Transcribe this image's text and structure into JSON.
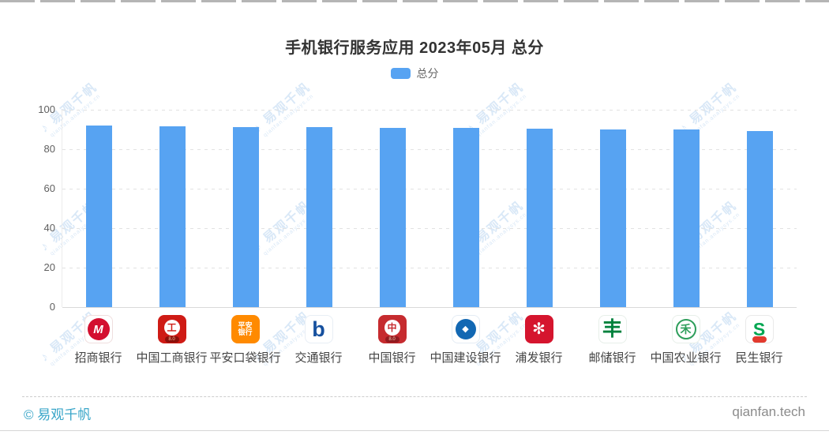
{
  "page": {
    "footer_left": "© 易观千帆",
    "footer_right": "qianfan.tech"
  },
  "legend": {
    "label": "总分",
    "color": "#57a3f2"
  },
  "watermark": {
    "logo": "♪",
    "text": "易观千帆",
    "subtext": "qianfan.analysys.cn",
    "color": "#d9e8f7"
  },
  "colors": {
    "bar": "#57a3f2",
    "footer_brand": "#3aa6c9"
  },
  "chart_data": {
    "type": "bar",
    "title": "手机银行服务应用 2023年05月 总分",
    "legend_entries": [
      "总分"
    ],
    "categories": [
      "招商银行",
      "中国工商银行",
      "平安口袋银行",
      "交通银行",
      "中国银行",
      "中国建设银行",
      "浦发银行",
      "邮储银行",
      "中国农业银行",
      "民生银行"
    ],
    "series": [
      {
        "name": "总分",
        "values": [
          92.1,
          91.8,
          91.4,
          91.1,
          91.0,
          90.7,
          90.4,
          90.1,
          89.9,
          89.4
        ]
      }
    ],
    "xlabel": "",
    "ylabel": "",
    "ylim": [
      0,
      100
    ],
    "yticks": [
      0,
      20,
      40,
      60,
      80,
      100
    ],
    "grid": "horizontal-dashed",
    "legend_position": "top-center",
    "bar_color": "#57a3f2",
    "icons": [
      {
        "name": "cmb-bank-icon",
        "bg": "#ffffff",
        "border": "#efdede",
        "circle_bg": "#d30f2f",
        "circle_size": 28,
        "glyph": "M",
        "glyph_color": "#ffffff",
        "glyph_size": 15,
        "italic": true
      },
      {
        "name": "icbc-bank-icon",
        "bg": "#cf1b15",
        "circle_bg": "#ffffff",
        "circle_size": 20,
        "glyph": "工",
        "glyph_color": "#cf1b15",
        "glyph_size": 12,
        "band_bg": "#8c0f0b",
        "band_text": "8.0",
        "band_color": "#f5c9a0"
      },
      {
        "name": "pingan-bank-icon",
        "bg": "#ff8a00",
        "glyph": "平安\n银行",
        "glyph_color": "#ffffff",
        "glyph_size": 9
      },
      {
        "name": "bocom-bank-icon",
        "bg": "#ffffff",
        "border": "#e8eef5",
        "glyph": "b",
        "glyph_color": "#16509e",
        "glyph_size": 27
      },
      {
        "name": "boc-bank-icon",
        "bg": "#c62b2f",
        "circle_bg": "#ffffff",
        "circle_size": 20,
        "glyph": "中",
        "glyph_color": "#c62b2f",
        "glyph_size": 12,
        "band_bg": "#931a20",
        "band_text": "8.0",
        "band_color": "#f0d3b2"
      },
      {
        "name": "ccb-bank-icon",
        "bg": "#ffffff",
        "border": "#e4ecf4",
        "circle_bg": "#1268b3",
        "circle_size": 26,
        "glyph": "◆",
        "glyph_color": "#ffffff",
        "glyph_size": 11
      },
      {
        "name": "spdb-bank-icon",
        "bg": "#d5152e",
        "glyph": "✻",
        "glyph_color": "#ffffff",
        "glyph_size": 20
      },
      {
        "name": "psbc-bank-icon",
        "bg": "#ffffff",
        "border": "#e7efe9",
        "glyph": "丰",
        "glyph_color": "#00813c",
        "glyph_size": 25
      },
      {
        "name": "abc-bank-icon",
        "bg": "#ffffff",
        "border": "#e7efe9",
        "circle_border": "#2e9e5b",
        "circle_size": 26,
        "glyph": "禾",
        "glyph_color": "#2e9e5b",
        "glyph_size": 14
      },
      {
        "name": "cmbc-bank-icon",
        "bg": "#ffffff",
        "border": "#e9e9e9",
        "glyph": "S",
        "glyph_color": "#00a651",
        "glyph_size": 23,
        "band_bg": "#e23a2e",
        "band_text": "",
        "band_color": "#ffffff"
      }
    ]
  }
}
